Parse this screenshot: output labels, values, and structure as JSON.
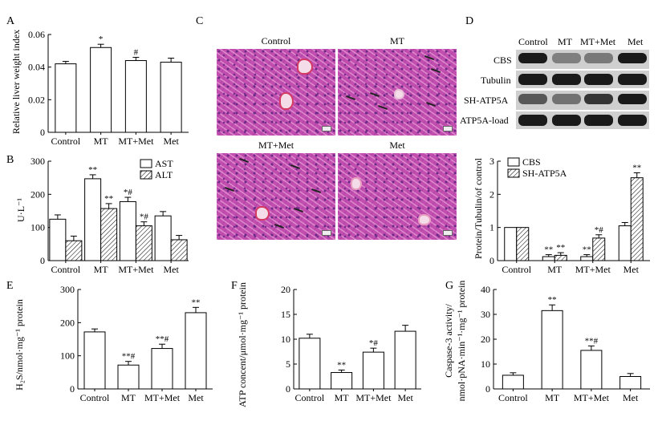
{
  "chart_data": [
    {
      "panel": "A",
      "type": "bar",
      "categories": [
        "Control",
        "MT",
        "MT+Met",
        "Met"
      ],
      "series": [
        {
          "name": "Relative liver weight index",
          "values": [
            0.042,
            0.052,
            0.044,
            0.043
          ],
          "errors": [
            0.0015,
            0.002,
            0.002,
            0.0025
          ],
          "sig": [
            "",
            "*",
            "#",
            ""
          ]
        }
      ],
      "ylabel": "Relative liver weight index",
      "ylim": [
        0,
        0.06
      ],
      "yticks": [
        "0",
        "0.02",
        "0.04",
        "0.06"
      ]
    },
    {
      "panel": "B",
      "type": "bar",
      "categories": [
        "Control",
        "MT",
        "MT+Met",
        "Met"
      ],
      "series": [
        {
          "name": "AST",
          "values": [
            125,
            247,
            178,
            135
          ],
          "errors": [
            13,
            12,
            13,
            13
          ],
          "sig": [
            "",
            "**",
            "*#",
            ""
          ]
        },
        {
          "name": "ALT",
          "values": [
            60,
            157,
            105,
            63
          ],
          "errors": [
            14,
            15,
            12,
            13
          ],
          "sig": [
            "",
            "**",
            "*#",
            ""
          ]
        }
      ],
      "ylabel": "U·L⁻¹",
      "ylim": [
        0,
        300
      ],
      "yticks": [
        "0",
        "100",
        "200",
        "300"
      ]
    },
    {
      "panel": "D",
      "type": "bar",
      "categories": [
        "Control",
        "MT",
        "MT+Met",
        "Met"
      ],
      "series": [
        {
          "name": "CBS",
          "values": [
            1.0,
            0.12,
            0.12,
            1.05
          ],
          "errors": [
            0,
            0.06,
            0.06,
            0.1
          ],
          "sig": [
            "",
            "**",
            "**",
            ""
          ]
        },
        {
          "name": "SH-ATP5A",
          "values": [
            1.0,
            0.16,
            0.68,
            2.5
          ],
          "errors": [
            0,
            0.08,
            0.1,
            0.15
          ],
          "sig": [
            "",
            "**",
            "*#",
            "**"
          ]
        }
      ],
      "ylabel": "Protein/Tubulin/of control",
      "ylim": [
        0,
        3
      ],
      "yticks": [
        "0",
        "1",
        "2",
        "3"
      ]
    },
    {
      "panel": "E",
      "type": "bar",
      "categories": [
        "Control",
        "MT",
        "MT+Met",
        "Met"
      ],
      "series": [
        {
          "name": "H2S",
          "values": [
            172,
            72,
            122,
            230
          ],
          "errors": [
            9,
            11,
            13,
            16
          ],
          "sig": [
            "",
            "**#",
            "**#",
            "**"
          ]
        }
      ],
      "ylabel": "H₂S/nmol·mg⁻¹ protein",
      "ylim": [
        0,
        300
      ],
      "yticks": [
        "0",
        "100",
        "200",
        "300"
      ]
    },
    {
      "panel": "F",
      "type": "bar",
      "categories": [
        "Control",
        "MT",
        "MT+Met",
        "Met"
      ],
      "series": [
        {
          "name": "ATP",
          "values": [
            10.2,
            3.3,
            7.4,
            11.6
          ],
          "errors": [
            0.8,
            0.5,
            0.8,
            1.2
          ],
          "sig": [
            "",
            "**",
            "*#",
            ""
          ]
        }
      ],
      "ylabel": "ATP concent/μmol·mg⁻¹ protein",
      "ylim": [
        0,
        20
      ],
      "yticks": [
        "0",
        "5",
        "10",
        "15",
        "20"
      ]
    },
    {
      "panel": "G",
      "type": "bar",
      "categories": [
        "Control",
        "MT",
        "MT+Met",
        "Met"
      ],
      "series": [
        {
          "name": "Caspase-3 activity",
          "values": [
            5.5,
            31.5,
            15.5,
            5.0
          ],
          "errors": [
            1.0,
            2.3,
            1.8,
            1.2
          ],
          "sig": [
            "",
            "**",
            "**#",
            ""
          ]
        }
      ],
      "ylabel_lines": [
        "Caspase-3 activity/",
        "nmol·pNA·min⁻¹·mg⁻¹ protein"
      ],
      "ylim": [
        0,
        40
      ],
      "yticks": [
        "0",
        "10",
        "20",
        "30",
        "40"
      ]
    }
  ],
  "panel_c": {
    "letter": "C",
    "images": [
      {
        "title": "Control"
      },
      {
        "title": "MT"
      },
      {
        "title": "MT+Met"
      },
      {
        "title": "Met"
      }
    ]
  },
  "panel_d_blot": {
    "letter": "D",
    "lanes": [
      "Control",
      "MT",
      "MT+Met",
      "Met"
    ],
    "rows": [
      {
        "label": "CBS",
        "intensity": [
          1.0,
          0.25,
          0.3,
          1.0
        ]
      },
      {
        "label": "Tubulin",
        "intensity": [
          1.0,
          1.0,
          1.0,
          1.0
        ]
      },
      {
        "label": "SH-ATP5A",
        "intensity": [
          0.55,
          0.35,
          0.8,
          1.0
        ]
      },
      {
        "label": "ATP5A-load",
        "intensity": [
          1.0,
          1.0,
          1.0,
          1.0
        ]
      }
    ]
  },
  "colors": {
    "bar_fill": "#ffffff",
    "stroke": "#000000",
    "tissue": "#c24fb0",
    "band": "#1a1a1a"
  }
}
